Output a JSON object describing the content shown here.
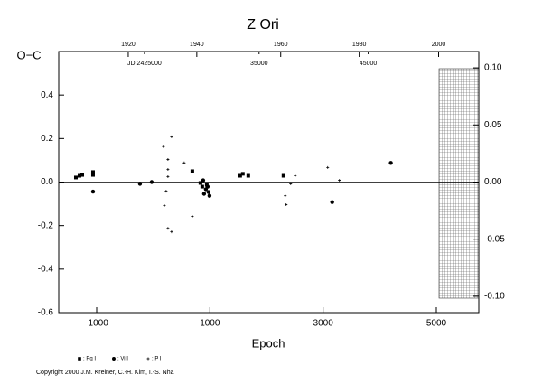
{
  "chart_data": {
    "type": "scatter",
    "title": "Z Ori",
    "y_label": "O−C",
    "x_label": "Epoch",
    "xlim": [
      -1670,
      5750
    ],
    "ylim": [
      -0.6,
      0.6
    ],
    "y2lim": [
      -0.1143,
      0.1143
    ],
    "xticks": [
      -1000,
      1000,
      3000,
      5000
    ],
    "yticks": [
      {
        "value": 0.4,
        "label": "0.4"
      },
      {
        "value": 0.2,
        "label": "0.2"
      },
      {
        "value": 0,
        "label": "0.0"
      },
      {
        "value": -0.2,
        "label": "-0.2"
      },
      {
        "value": -0.4,
        "label": "-0.4"
      },
      {
        "value": -0.6,
        "label": "-0.6"
      }
    ],
    "y2ticks": [
      {
        "value": 0.1,
        "label": "0.10"
      },
      0.05,
      {
        "value": 0,
        "label": "0.00"
      },
      -0.05,
      {
        "value": -0.1,
        "label": "-0.10"
      }
    ],
    "year_ticks": [
      {
        "value": -442,
        "label": "1920"
      },
      {
        "value": 769,
        "label": "1940"
      },
      {
        "value": 2251,
        "label": "1960"
      },
      {
        "value": 3638,
        "label": "1980"
      },
      {
        "value": 5040,
        "label": "2000"
      }
    ],
    "jd_ticks": [
      {
        "value": -155,
        "label": "JD 2425000"
      },
      {
        "value": 1869,
        "label": "35000"
      },
      {
        "value": 3797,
        "label": "45000"
      }
    ],
    "zero_line": true,
    "series": [
      {
        "name": ": Pg I",
        "marker": "square",
        "color": "#000000",
        "x": [
          -1367,
          -1303,
          -1255,
          -1064,
          -1064,
          690,
          833,
          865,
          945,
          1535,
          1582,
          1678,
          2300
        ],
        "values": [
          0.021,
          0.029,
          0.033,
          0.046,
          0.033,
          0.05,
          -0.004,
          -0.021,
          -0.013,
          0.029,
          0.038,
          0.029,
          0.029
        ]
      },
      {
        "name": ": Vi I",
        "marker": "circle",
        "color": "#000000",
        "x": [
          -1064,
          -235,
          -28,
          881,
          929,
          977,
          993,
          897,
          3160,
          4196,
          961
        ],
        "values": [
          -0.044,
          -0.008,
          0,
          0.008,
          -0.033,
          -0.046,
          -0.063,
          -0.054,
          -0.092,
          0.088,
          -0.021
        ]
      },
      {
        "name": ": P I",
        "marker": "plus",
        "color": "#000000",
        "x": [
          180,
          323,
          259,
          259,
          259,
          227,
          196,
          259,
          323,
          690,
          546,
          2331,
          2347,
          2507,
          3081,
          3288,
          2427
        ],
        "values": [
          0.163,
          0.208,
          0.104,
          0.058,
          0.025,
          -0.042,
          -0.108,
          -0.213,
          -0.229,
          -0.158,
          0.088,
          -0.063,
          -0.104,
          0.029,
          0.067,
          0.008,
          -0.008
        ]
      }
    ]
  },
  "copyright": "Copyright 2000 J.M. Kreiner, C.-H. Kim, I.-S. Nha"
}
